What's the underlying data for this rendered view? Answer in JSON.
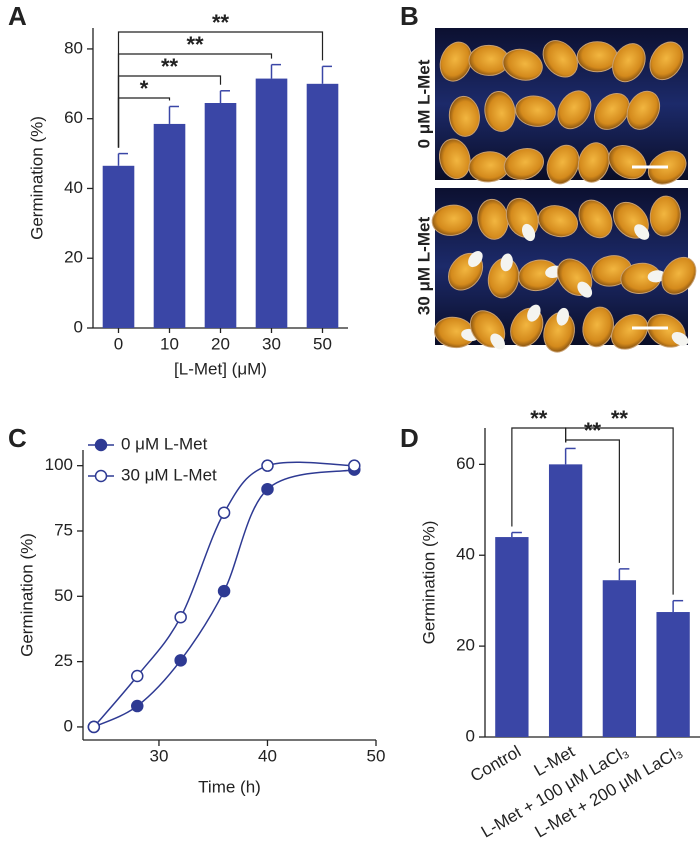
{
  "chart_data": [
    {
      "panel": "A",
      "type": "bar",
      "color": "#3a46a6",
      "categories": [
        "0",
        "10",
        "20",
        "30",
        "50"
      ],
      "values": [
        46.5,
        58.5,
        64.5,
        71.5,
        70
      ],
      "errors": [
        3.5,
        5,
        3.5,
        4,
        5
      ],
      "x_label": "[L-Met] (μM)",
      "y_label": "Germination (%)",
      "ylim": [
        0,
        86
      ],
      "yticks": [
        0,
        20,
        40,
        60,
        80
      ],
      "brackets": [
        {
          "between": [
            "0",
            "10"
          ],
          "label": "*"
        },
        {
          "between": [
            "0",
            "20"
          ],
          "label": "**"
        },
        {
          "between": [
            "0",
            "30"
          ],
          "label": "**"
        },
        {
          "between": [
            "0",
            "50"
          ],
          "label": "**"
        }
      ]
    },
    {
      "panel": "C",
      "type": "line",
      "x": [
        24,
        28,
        32,
        36,
        40,
        48
      ],
      "series": [
        {
          "name": "0 μM L-Met",
          "color": "#2e3a93",
          "marker": "filled",
          "values": [
            0,
            8,
            25.5,
            52,
            91,
            98.5
          ]
        },
        {
          "name": "30 μM L-Met",
          "color": "#2e3a93",
          "marker": "open",
          "values": [
            0,
            19.5,
            42,
            82,
            100,
            100
          ]
        }
      ],
      "x_label": "Time (h)",
      "y_label": "Germination (%)",
      "xlim": [
        23,
        50
      ],
      "xticks": [
        30,
        40,
        50
      ],
      "ylim": [
        -5,
        106
      ],
      "yticks": [
        0,
        25,
        50,
        75,
        100
      ],
      "legend": "upper left"
    },
    {
      "panel": "D",
      "type": "bar",
      "color": "#3a46a6",
      "categories": [
        "Control",
        "L-Met",
        "L-Met + 100 μM LaCl₃",
        "L-Met + 200 μM LaCl₃"
      ],
      "values": [
        44,
        60,
        34.5,
        27.5
      ],
      "errors": [
        1,
        3.5,
        2.5,
        2.5
      ],
      "y_label": "Germination (%)",
      "ylim": [
        0,
        68
      ],
      "yticks": [
        0,
        20,
        40,
        60
      ],
      "brackets": [
        {
          "between": [
            "L-Met",
            "Control"
          ],
          "label": "**"
        },
        {
          "between": [
            "L-Met",
            "L-Met + 100 μM LaCl₃"
          ],
          "label": "**"
        },
        {
          "between": [
            "L-Met",
            "L-Met + 200 μM LaCl₃"
          ],
          "label": "**"
        }
      ]
    }
  ],
  "image_panel": {
    "panel": "B",
    "labels": [
      "0 μM L-Met",
      "30 μM L-Met"
    ]
  }
}
